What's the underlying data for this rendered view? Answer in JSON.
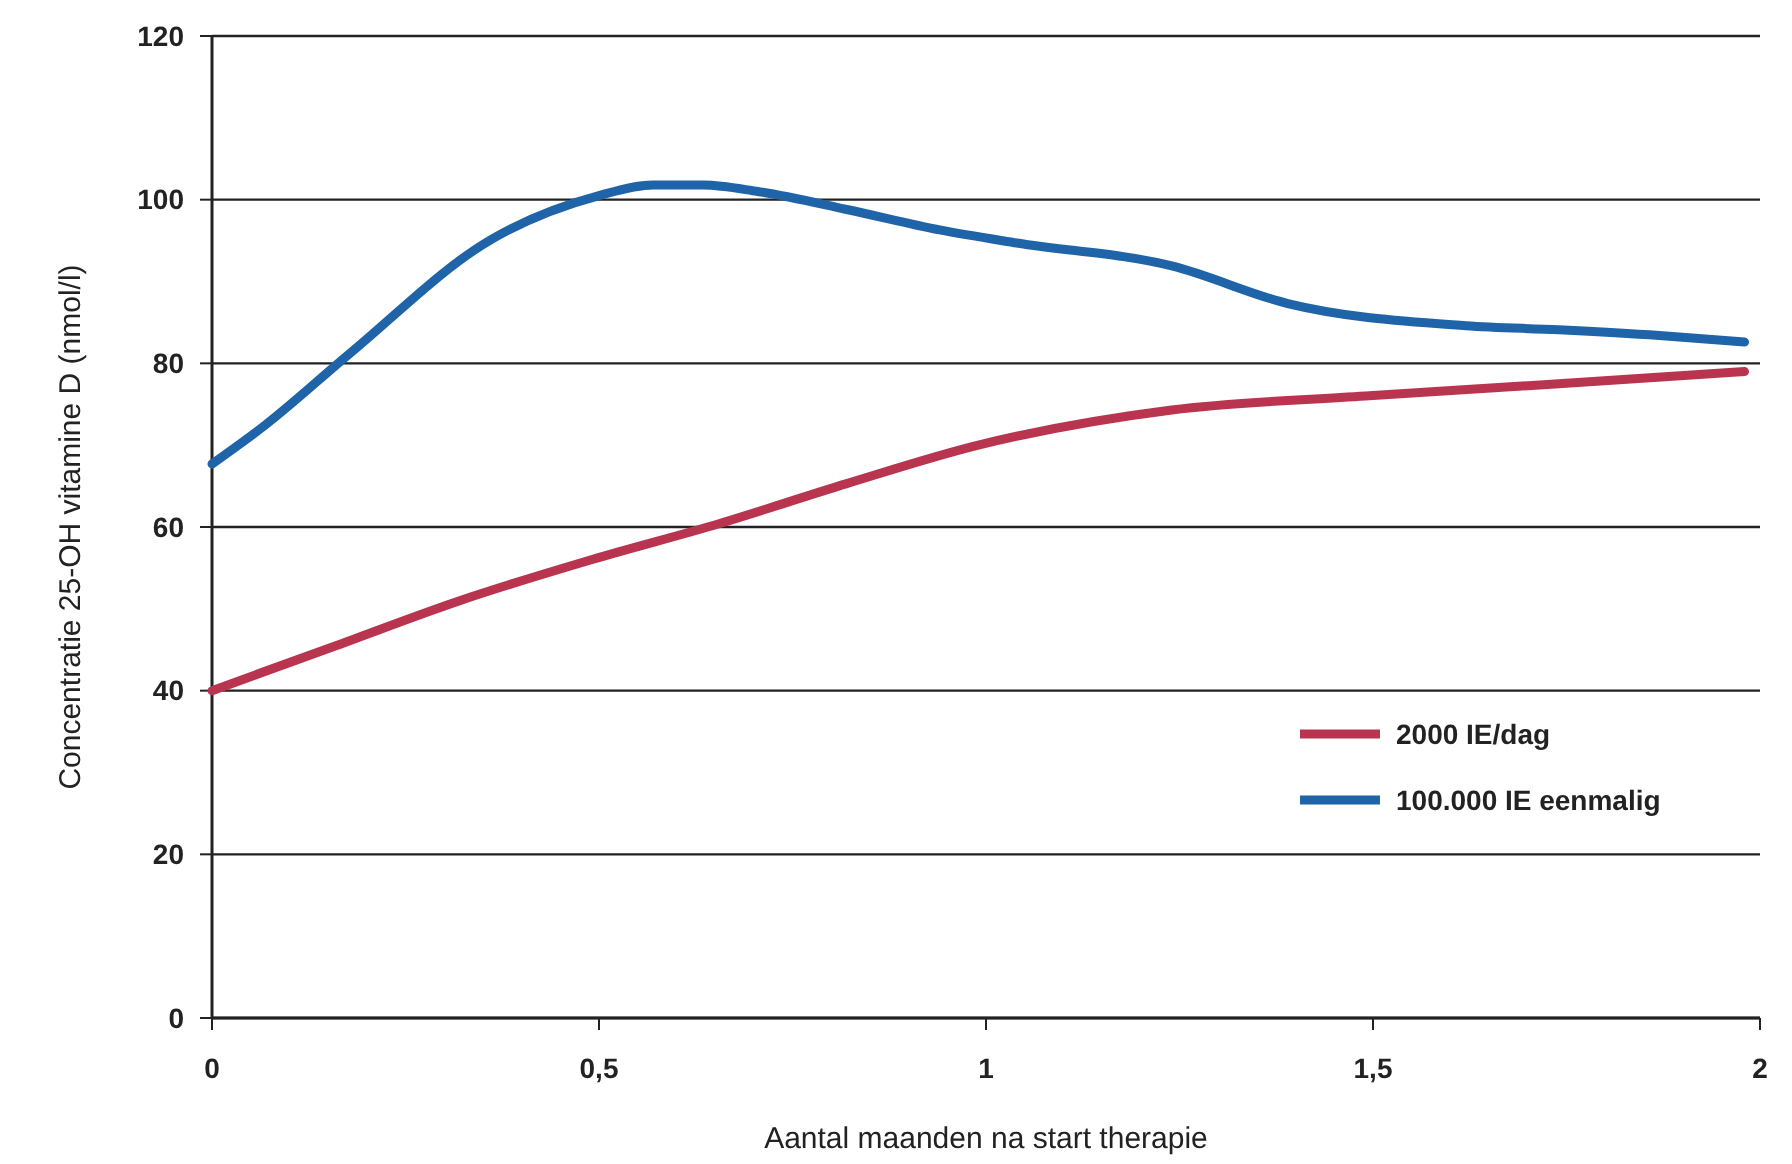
{
  "chart_data": {
    "type": "line",
    "xlabel": "Aantal maanden na start therapie",
    "ylabel": "Concentratie 25-OH vitamine D (nmol/l)",
    "xlim": [
      0,
      2
    ],
    "ylim": [
      0,
      120
    ],
    "xticks": [
      0,
      {
        "value": 0.5,
        "label": "0,5"
      },
      1,
      {
        "value": 1.5,
        "label": "1,5"
      },
      2
    ],
    "yticks": [
      0,
      20,
      40,
      60,
      80,
      100,
      120
    ],
    "grid": "y",
    "legend": "right",
    "line_style": "solid",
    "series": [
      {
        "name": "2000 IE/dag",
        "color": "#b8344f",
        "x": [
          0,
          0.16,
          0.32,
          0.49,
          0.655,
          0.82,
          0.99,
          1.24,
          1.49,
          1.74,
          1.98
        ],
        "values": [
          40,
          45.5,
          51,
          56,
          60.4,
          65.3,
          70,
          74.3,
          76,
          77.5,
          79
        ]
      },
      {
        "name": "100.000 IE eenmalig",
        "color": "#1f64a8",
        "x": [
          0,
          0.068,
          0.178,
          0.36,
          0.5,
          0.57,
          0.635,
          0.705,
          0.82,
          0.94,
          1.04,
          1.24,
          1.39,
          1.62,
          1.74,
          1.87,
          1.98
        ],
        "values": [
          67.7,
          72.4,
          81.2,
          95.1,
          100.5,
          101.8,
          101.8,
          101,
          98.8,
          96.3,
          94.7,
          91.9,
          87.3,
          84.6,
          84.1,
          83.4,
          82.6
        ]
      }
    ]
  }
}
